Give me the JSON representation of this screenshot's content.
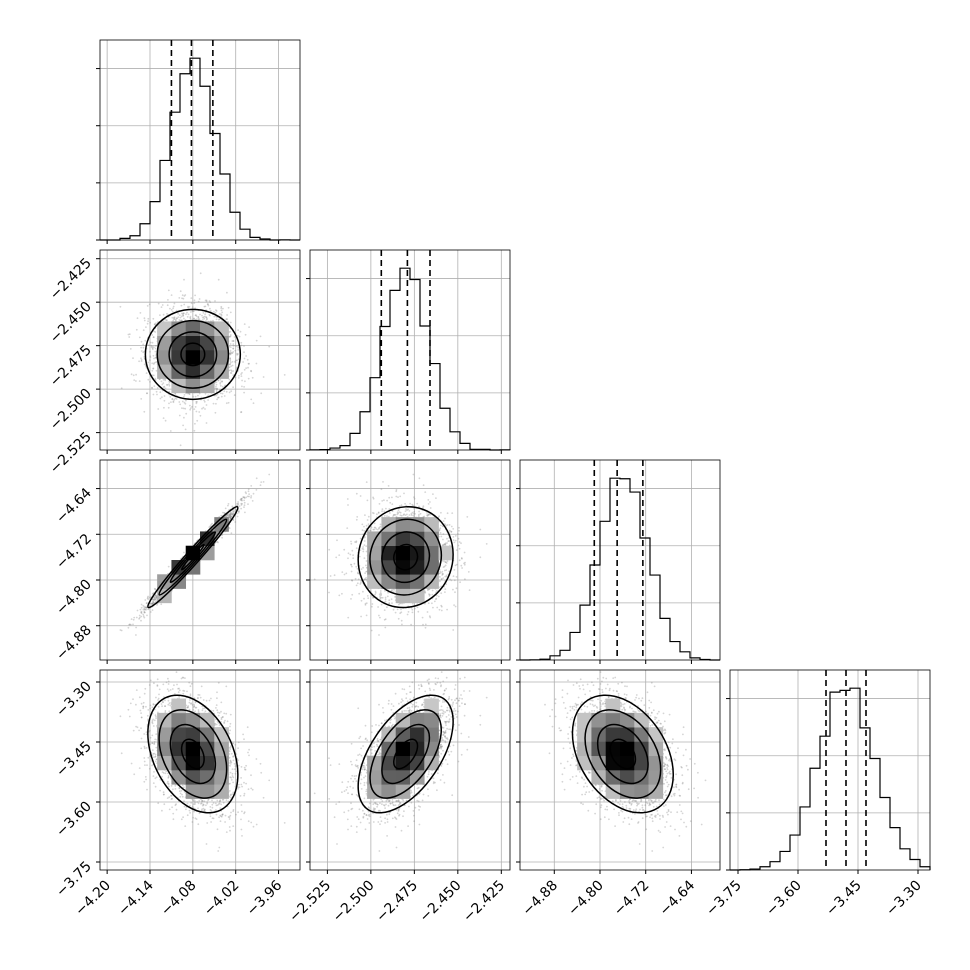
{
  "chart_data": {
    "type": "corner",
    "params": [
      {
        "mean": -4.08,
        "sd": 0.03,
        "range": [
          -4.21,
          -3.93
        ],
        "ticks": [
          -4.2,
          -4.14,
          -4.08,
          -4.02,
          -3.96
        ],
        "ticklabels": [
          "−4.20",
          "−4.14",
          "−4.08",
          "−4.02",
          "−3.96"
        ],
        "quantiles": [
          -4.11,
          -4.082,
          -4.052
        ]
      },
      {
        "mean": -2.48,
        "sd": 0.013,
        "range": [
          -2.535,
          -2.42
        ],
        "ticks": [
          -2.525,
          -2.5,
          -2.475,
          -2.45,
          -2.425
        ],
        "ticklabels": [
          "−2.525",
          "−2.500",
          "−2.475",
          "−2.450",
          "−2.425"
        ],
        "quantiles": [
          -2.494,
          -2.479,
          -2.466
        ]
      },
      {
        "mean": -4.76,
        "sd": 0.042,
        "range": [
          -4.94,
          -4.59
        ],
        "ticks": [
          -4.88,
          -4.8,
          -4.72,
          -4.64
        ],
        "ticklabels": [
          "−4.88",
          "−4.80",
          "−4.72",
          "−4.64"
        ],
        "quantiles": [
          -4.81,
          -4.77,
          -4.725
        ]
      },
      {
        "mean": -3.48,
        "sd": 0.07,
        "range": [
          -3.77,
          -3.27
        ],
        "ticks": [
          -3.75,
          -3.6,
          -3.45,
          -3.3
        ],
        "ticklabels": [
          "−3.75",
          "−3.60",
          "−3.45",
          "−3.30"
        ],
        "quantiles": [
          -3.53,
          -3.48,
          -3.43
        ]
      }
    ],
    "correlations": [
      [
        1,
        0,
        0.98,
        -0.35
      ],
      [
        0,
        1,
        0.05,
        0.55
      ],
      [
        0.98,
        0.05,
        1,
        -0.35
      ],
      [
        -0.35,
        0.55,
        -0.35,
        1
      ]
    ],
    "histogram_bins": 20,
    "contour_levels": [
      "0.5σ",
      "1σ",
      "1.5σ",
      "2σ"
    ],
    "grid": true,
    "colors": {
      "line": "#000000",
      "grid": "#b0b0b0",
      "points": "#888888"
    }
  }
}
